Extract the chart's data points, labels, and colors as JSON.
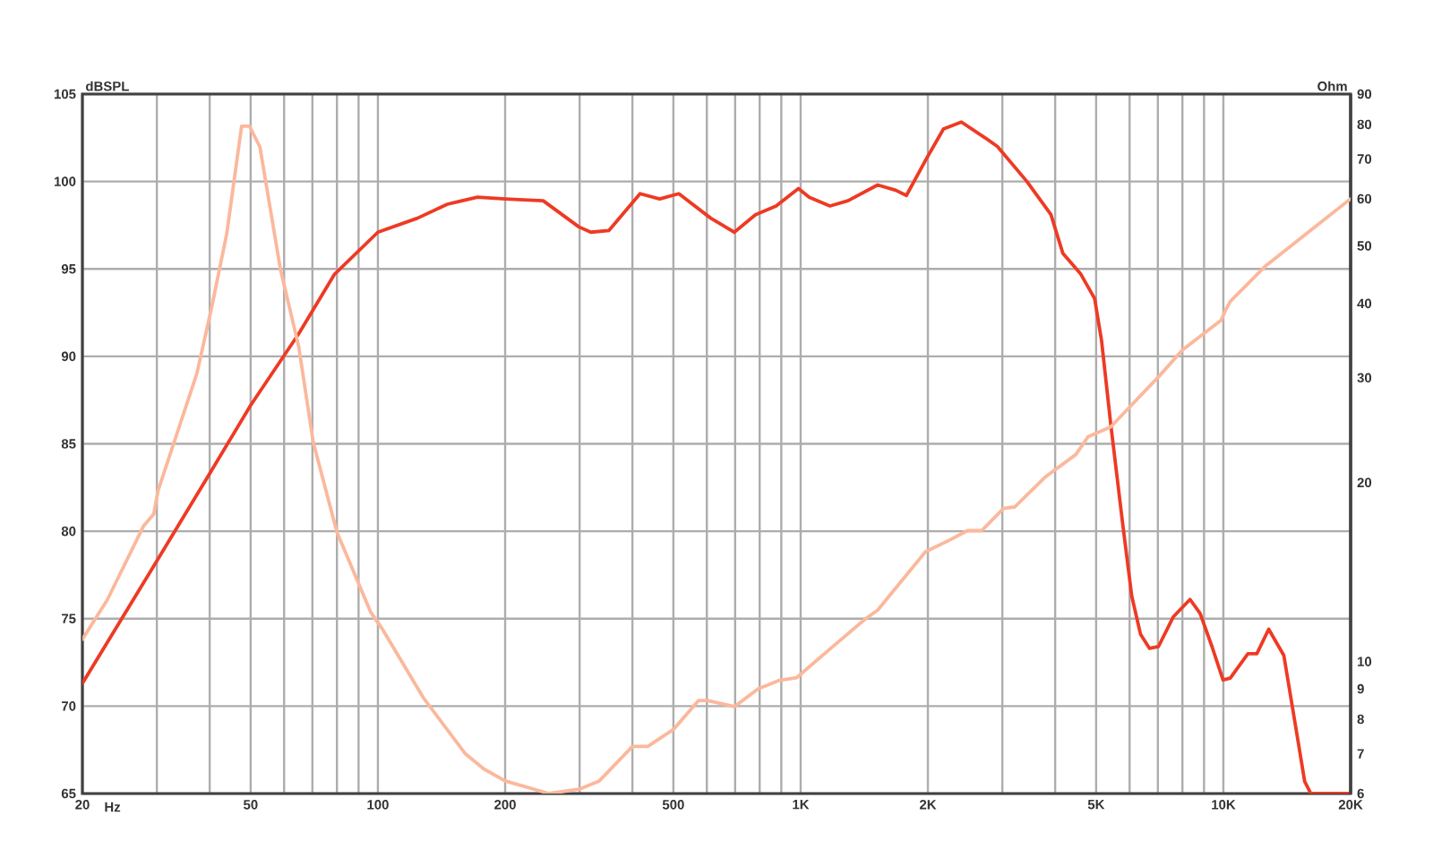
{
  "chart_data": [
    {
      "type": "line",
      "xlabel": "Hz",
      "ylabel": "dBSPL",
      "log": "x",
      "grid": true,
      "xlim": [
        20,
        20000
      ],
      "xticks": [
        20,
        {
          "value": 30,
          "label": null
        },
        {
          "value": 40,
          "label": null
        },
        50,
        {
          "value": 60,
          "label": null
        },
        {
          "value": 70,
          "label": null
        },
        {
          "value": 80,
          "label": null
        },
        {
          "value": 90,
          "label": null
        },
        100,
        200,
        {
          "value": 300,
          "label": null
        },
        {
          "value": 400,
          "label": null
        },
        500,
        {
          "value": 600,
          "label": null
        },
        {
          "value": 700,
          "label": null
        },
        {
          "value": 800,
          "label": null
        },
        {
          "value": 900,
          "label": null
        },
        {
          "value": 1000,
          "label": "1K"
        },
        {
          "value": 2000,
          "label": "2K"
        },
        {
          "value": 3000,
          "label": null
        },
        {
          "value": 4000,
          "label": null
        },
        {
          "value": 5000,
          "label": "5K"
        },
        {
          "value": 6000,
          "label": null
        },
        {
          "value": 7000,
          "label": null
        },
        {
          "value": 8000,
          "label": null
        },
        {
          "value": 9000,
          "label": null
        },
        {
          "value": 10000,
          "label": "10K"
        },
        {
          "value": 20000,
          "label": "20K"
        }
      ],
      "ylim": [
        65,
        105
      ],
      "yticks": [
        65,
        70,
        75,
        80,
        85,
        90,
        95,
        100,
        105
      ],
      "series": [
        {
          "color": "#ee3a24",
          "x": [
            20,
            30,
            40,
            50,
            65,
            79,
            100,
            124,
            146,
            172,
            200,
            246,
            299,
            319,
            352,
            417,
            464,
            515,
            613,
            697,
            782,
            875,
            988,
            1048,
            1173,
            1294,
            1521,
            1678,
            1779,
            1974,
            2177,
            2400,
            2730,
            2920,
            3430,
            3910,
            4170,
            4600,
            4960,
            5150,
            5410,
            5780,
            6070,
            6370,
            6690,
            7020,
            7610,
            8340,
            8810,
            9400,
            9980,
            10380,
            11430,
            12000,
            12800,
            13900,
            14830,
            15570,
            16100,
            20000
          ],
          "values": [
            71.3,
            78.3,
            83.3,
            87.2,
            91.3,
            94.7,
            97.1,
            97.9,
            98.7,
            99.1,
            99.0,
            98.9,
            97.4,
            97.1,
            97.2,
            99.3,
            99.0,
            99.3,
            97.9,
            97.1,
            98.1,
            98.6,
            99.6,
            99.1,
            98.6,
            98.9,
            99.8,
            99.5,
            99.2,
            101.2,
            103.0,
            103.4,
            102.5,
            102.0,
            100.0,
            98.1,
            95.9,
            94.7,
            93.3,
            90.9,
            86.2,
            80.4,
            76.3,
            74.1,
            73.3,
            73.4,
            75.1,
            76.1,
            75.3,
            73.4,
            71.5,
            71.6,
            73.0,
            73.0,
            74.4,
            72.9,
            68.8,
            65.7,
            65,
            65
          ]
        }
      ]
    },
    {
      "type": "line",
      "ylabel": "Ohm",
      "log": "xy",
      "tick_labels": "y",
      "xlim": [
        20,
        20000
      ],
      "ylim": [
        6,
        90
      ],
      "yticks": [
        6,
        7,
        8,
        9,
        10,
        20,
        30,
        40,
        50,
        60,
        70,
        80,
        90
      ],
      "series": [
        {
          "color": "#fbb89c",
          "x": [
            20,
            22.9,
            27.9,
            29.5,
            30.2,
            33.3,
            37.3,
            40.4,
            43.9,
            47.6,
            49.7,
            52.6,
            58.8,
            65,
            70.3,
            80,
            96.2,
            102.8,
            128,
            161,
            178,
            200,
            254,
            299,
            334,
            400,
            435,
            501,
            573,
            602,
            697,
            794,
            891,
            979,
            1173,
            1423,
            1521,
            1974,
            2248,
            2480,
            2680,
            3020,
            3210,
            3780,
            4480,
            4790,
            5410,
            7020,
            8000,
            9880,
            10100,
            10380,
            12600,
            20000
          ],
          "values": [
            10.9,
            12.7,
            16.9,
            17.7,
            19.4,
            23.9,
            30.5,
            39.3,
            52.4,
            79.5,
            79.5,
            73.3,
            45.7,
            33.8,
            23.4,
            16.5,
            12.1,
            11.3,
            8.7,
            7.0,
            6.6,
            6.3,
            6.0,
            6.1,
            6.3,
            7.2,
            7.2,
            7.7,
            8.6,
            8.6,
            8.4,
            9.0,
            9.3,
            9.4,
            10.5,
            11.8,
            12.2,
            15.3,
            16.0,
            16.6,
            16.6,
            18.1,
            18.2,
            20.4,
            22.3,
            23.9,
            24.8,
            30.1,
            33.4,
            37.5,
            38.9,
            40.3,
            46.3,
            60
          ]
        }
      ]
    }
  ]
}
